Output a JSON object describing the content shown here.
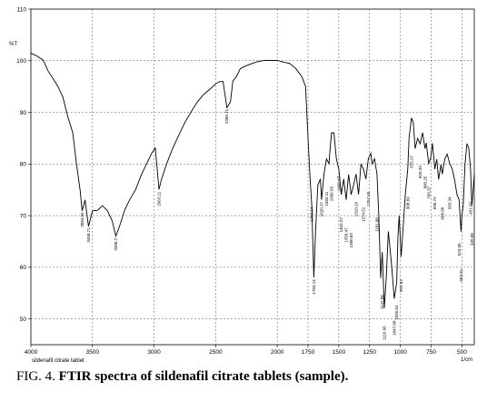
{
  "caption": {
    "prefix": "FIG. 4. ",
    "title": "FTIR spectra of sildenafil citrate tablets (sample)."
  },
  "chart_data": {
    "type": "line",
    "y_unit_label": "%T",
    "x_unit_label": "1/cm",
    "sample_label": "sildenafil citrate tablet",
    "xlim": [
      4000,
      400
    ],
    "ylim": [
      45,
      110
    ],
    "x_ticks": [
      4000,
      3500,
      3000,
      2500,
      2000,
      1750,
      1500,
      1250,
      1000,
      750,
      500
    ],
    "y_ticks": [
      50,
      60,
      70,
      80,
      90,
      100,
      110
    ],
    "grid": true,
    "series": [
      {
        "points": [
          [
            4000,
            101.5
          ],
          [
            3950,
            101
          ],
          [
            3900,
            100
          ],
          [
            3860,
            98
          ],
          [
            3820,
            96.5
          ],
          [
            3780,
            95
          ],
          [
            3740,
            93
          ],
          [
            3700,
            89
          ],
          [
            3660,
            86
          ],
          [
            3630,
            80
          ],
          [
            3600,
            75
          ],
          [
            3584,
            71
          ],
          [
            3560,
            73
          ],
          [
            3532,
            68
          ],
          [
            3500,
            71
          ],
          [
            3460,
            71
          ],
          [
            3420,
            72
          ],
          [
            3380,
            71
          ],
          [
            3340,
            69
          ],
          [
            3310,
            66
          ],
          [
            3280,
            68
          ],
          [
            3240,
            71
          ],
          [
            3200,
            73
          ],
          [
            3150,
            75
          ],
          [
            3100,
            78
          ],
          [
            3060,
            80
          ],
          [
            3020,
            82
          ],
          [
            2990,
            83
          ],
          [
            2960,
            75
          ],
          [
            2940,
            77
          ],
          [
            2900,
            80
          ],
          [
            2850,
            83
          ],
          [
            2800,
            85.5
          ],
          [
            2750,
            88
          ],
          [
            2700,
            90
          ],
          [
            2650,
            92
          ],
          [
            2600,
            93.5
          ],
          [
            2550,
            94.5
          ],
          [
            2500,
            95.5
          ],
          [
            2470,
            96
          ],
          [
            2440,
            96
          ],
          [
            2409,
            91
          ],
          [
            2380,
            92
          ],
          [
            2360,
            96
          ],
          [
            2330,
            97
          ],
          [
            2300,
            98.5
          ],
          [
            2250,
            99
          ],
          [
            2200,
            99.5
          ],
          [
            2150,
            99.8
          ],
          [
            2100,
            100
          ],
          [
            2050,
            100
          ],
          [
            2000,
            100
          ],
          [
            1950,
            99.8
          ],
          [
            1900,
            99.5
          ],
          [
            1850,
            98.5
          ],
          [
            1800,
            97
          ],
          [
            1770,
            95
          ],
          [
            1750,
            85
          ],
          [
            1735,
            78
          ],
          [
            1720,
            72
          ],
          [
            1703,
            58
          ],
          [
            1690,
            66
          ],
          [
            1670,
            76
          ],
          [
            1650,
            77
          ],
          [
            1640,
            73
          ],
          [
            1620,
            78
          ],
          [
            1600,
            81
          ],
          [
            1580,
            80
          ],
          [
            1560,
            86
          ],
          [
            1540,
            86
          ],
          [
            1520,
            81
          ],
          [
            1500,
            79
          ],
          [
            1480,
            74
          ],
          [
            1460,
            77
          ],
          [
            1440,
            73
          ],
          [
            1420,
            78
          ],
          [
            1400,
            74
          ],
          [
            1380,
            76
          ],
          [
            1360,
            78
          ],
          [
            1340,
            74
          ],
          [
            1320,
            80
          ],
          [
            1300,
            79
          ],
          [
            1280,
            77
          ],
          [
            1260,
            81
          ],
          [
            1240,
            82
          ],
          [
            1230,
            80
          ],
          [
            1210,
            81
          ],
          [
            1190,
            78
          ],
          [
            1175,
            70
          ],
          [
            1160,
            58
          ],
          [
            1147,
            63
          ],
          [
            1130,
            52
          ],
          [
            1115,
            58
          ],
          [
            1098,
            67
          ],
          [
            1085,
            64
          ],
          [
            1070,
            60
          ],
          [
            1050,
            54
          ],
          [
            1030,
            57
          ],
          [
            1020,
            66
          ],
          [
            1010,
            70
          ],
          [
            994,
            62
          ],
          [
            980,
            67
          ],
          [
            960,
            74
          ],
          [
            940,
            79
          ],
          [
            930,
            85
          ],
          [
            910,
            89
          ],
          [
            895,
            88
          ],
          [
            880,
            83
          ],
          [
            860,
            85
          ],
          [
            840,
            84
          ],
          [
            820,
            86
          ],
          [
            800,
            83
          ],
          [
            790,
            84
          ],
          [
            770,
            80
          ],
          [
            755,
            81
          ],
          [
            740,
            84
          ],
          [
            720,
            79
          ],
          [
            705,
            81
          ],
          [
            690,
            77
          ],
          [
            670,
            80
          ],
          [
            660,
            78
          ],
          [
            640,
            81
          ],
          [
            620,
            82
          ],
          [
            600,
            80
          ],
          [
            580,
            79
          ],
          [
            560,
            77
          ],
          [
            540,
            74
          ],
          [
            523,
            73
          ],
          [
            508,
            67
          ],
          [
            500,
            70
          ],
          [
            490,
            72
          ],
          [
            475,
            80
          ],
          [
            460,
            84
          ],
          [
            445,
            83
          ],
          [
            430,
            79
          ],
          [
            420,
            72
          ],
          [
            400,
            78
          ]
        ]
      }
    ],
    "annotations": [
      {
        "x": 3584,
        "y": 71,
        "text": "3584.55"
      },
      {
        "x": 3532,
        "y": 68,
        "text": "3458.71"
      },
      {
        "x": 3310,
        "y": 66,
        "text": "3306.7"
      },
      {
        "x": 2960,
        "y": 75,
        "text": "2963.11"
      },
      {
        "x": 2409,
        "y": 91,
        "text": "2360.71"
      },
      {
        "x": 1720,
        "y": 72,
        "text": "1703.14"
      },
      {
        "x": 1703,
        "y": 58,
        "text": "1703.14"
      },
      {
        "x": 1640,
        "y": 73,
        "text": "1620.37"
      },
      {
        "x": 1600,
        "y": 75,
        "text": "1584.11"
      },
      {
        "x": 1560,
        "y": 76,
        "text": "1566.56"
      },
      {
        "x": 1500,
        "y": 78,
        "text": "1496.47"
      },
      {
        "x": 1480,
        "y": 70,
        "text": "1402.27"
      },
      {
        "x": 1440,
        "y": 68,
        "text": "1359.47"
      },
      {
        "x": 1400,
        "y": 67,
        "text": "1360.83"
      },
      {
        "x": 1360,
        "y": 73,
        "text": "1310.10"
      },
      {
        "x": 1300,
        "y": 72,
        "text": "1274.51"
      },
      {
        "x": 1260,
        "y": 75,
        "text": "1257.60"
      },
      {
        "x": 1190,
        "y": 70,
        "text": "1181.08"
      },
      {
        "x": 1147,
        "y": 55,
        "text": "1147.06"
      },
      {
        "x": 1130,
        "y": 49,
        "text": "1116.96"
      },
      {
        "x": 1050,
        "y": 50,
        "text": "1047.00"
      },
      {
        "x": 1030,
        "y": 53,
        "text": "1026.64"
      },
      {
        "x": 994,
        "y": 58,
        "text": "993.63"
      },
      {
        "x": 940,
        "y": 74,
        "text": "908.69"
      },
      {
        "x": 910,
        "y": 82,
        "text": "876.27"
      },
      {
        "x": 840,
        "y": 80,
        "text": "820.33"
      },
      {
        "x": 800,
        "y": 78,
        "text": "800.25"
      },
      {
        "x": 770,
        "y": 76,
        "text": "760.37"
      },
      {
        "x": 720,
        "y": 74,
        "text": "695.72"
      },
      {
        "x": 660,
        "y": 72,
        "text": "668.80"
      },
      {
        "x": 600,
        "y": 74,
        "text": "583.34"
      },
      {
        "x": 523,
        "y": 65,
        "text": "523.00"
      },
      {
        "x": 508,
        "y": 60,
        "text": "503.61"
      },
      {
        "x": 430,
        "y": 73,
        "text": "451.03"
      },
      {
        "x": 420,
        "y": 67,
        "text": "420.00"
      }
    ]
  },
  "style": {
    "line_color": "#000000",
    "grid_color": "#555555",
    "axis_color": "#000000"
  }
}
